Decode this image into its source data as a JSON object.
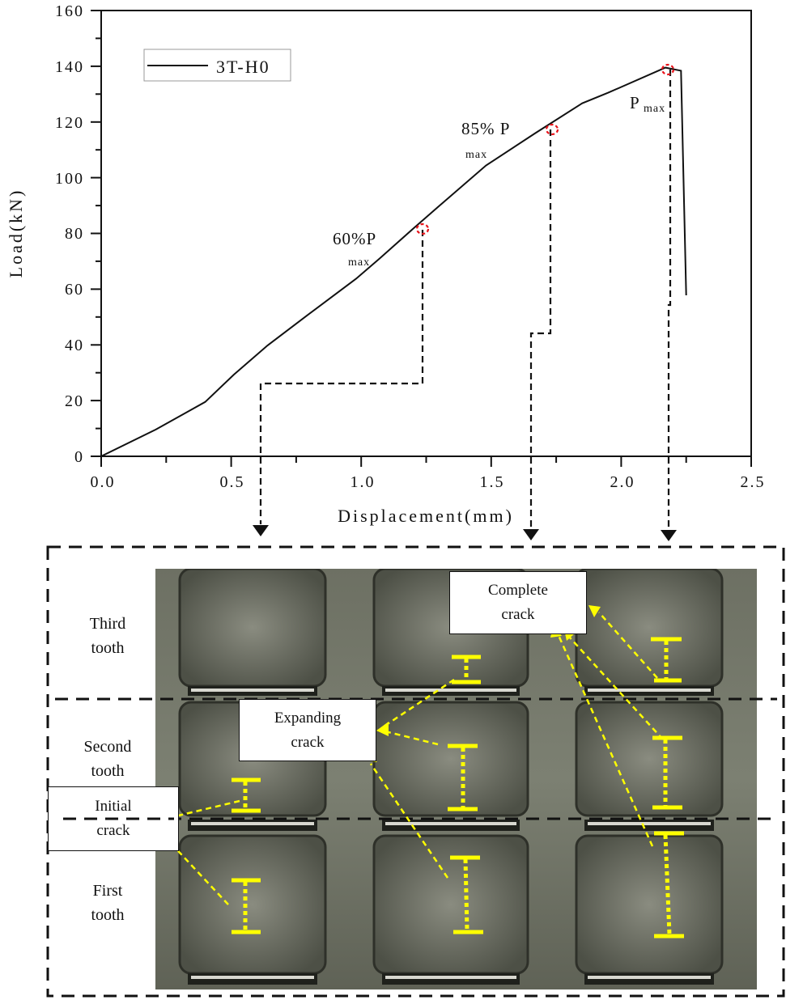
{
  "chart_data": {
    "type": "line",
    "title": "",
    "xlabel": "Displacement(mm)",
    "ylabel": "Load(kN)",
    "xlim": [
      0.0,
      2.5
    ],
    "ylim": [
      0,
      160
    ],
    "x_ticks": [
      "0.0",
      "0.5",
      "1.0",
      "1.5",
      "2.0",
      "2.5"
    ],
    "y_ticks": [
      "0",
      "20",
      "40",
      "60",
      "80",
      "100",
      "120",
      "140",
      "160"
    ],
    "grid": false,
    "legend_position": "upper-left",
    "series": [
      {
        "name": "3T-H0",
        "color": "#000000",
        "x": [
          0.0,
          0.21,
          0.4,
          0.51,
          0.64,
          0.78,
          0.98,
          1.07,
          1.2,
          1.31,
          1.48,
          1.67,
          1.85,
          1.95,
          2.17,
          2.23,
          2.25
        ],
        "y": [
          0,
          9.6,
          19.5,
          29.3,
          39.8,
          49.7,
          63.7,
          70.9,
          81.7,
          90.7,
          104.4,
          116.0,
          126.7,
          130.5,
          139.5,
          138.4,
          57.8
        ]
      }
    ],
    "annotations": [
      {
        "label": "60%P",
        "sub": "max",
        "x": 1.24,
        "y": 81.5,
        "marker": "red-dashed-circle"
      },
      {
        "label": "85% P",
        "sub": "max",
        "x": 1.73,
        "y": 117.0,
        "marker": "red-dashed-circle"
      },
      {
        "label": "P",
        "sub": "max",
        "x": 2.18,
        "y": 138.5,
        "marker": "red-dashed-circle"
      }
    ]
  },
  "legend": {
    "label": "3T-H0"
  },
  "axes": {
    "x_title": "Displacement(mm)",
    "y_title": "Load(kN)"
  },
  "markers": {
    "p60": {
      "main": "60%P",
      "sub": "max"
    },
    "p85": {
      "main": "85% P",
      "sub": "max"
    },
    "pmax": {
      "main": "P",
      "sub": "max"
    }
  },
  "photo_panel": {
    "rows": [
      {
        "label": "Third\ntooth"
      },
      {
        "label": "Second\ntooth"
      },
      {
        "label": "First\ntooth"
      }
    ],
    "callouts": {
      "initial": "Initial\ncrack",
      "expanding": "Expanding\ncrack",
      "complete": "Complete\ncrack"
    }
  },
  "colors": {
    "curve": "#000000",
    "marker": "#e8141b",
    "crack_marker": "#ffff00",
    "background": "#ffffff"
  }
}
